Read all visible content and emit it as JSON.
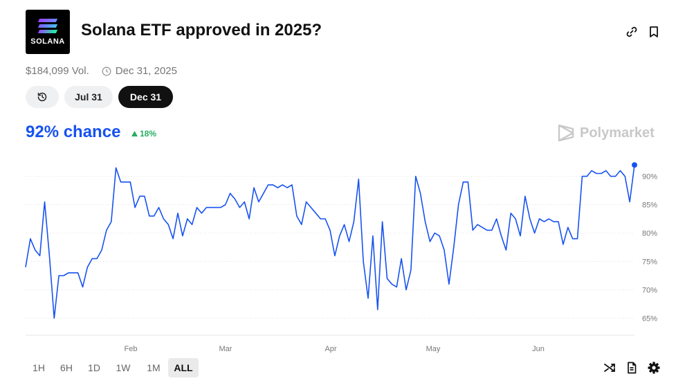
{
  "market": {
    "logo_text": "SOLANA",
    "title": "Solana ETF approved in 2025?",
    "volume": "$184,099 Vol.",
    "end_date": "Dec 31, 2025",
    "icons": [
      "link-icon",
      "bookmark-icon",
      "history-icon",
      "clock-icon"
    ]
  },
  "date_tabs": [
    "Jul 31",
    "Dec 31"
  ],
  "active_date_tab": "Dec 31",
  "summary": {
    "chance": "92% chance",
    "delta": "18%",
    "delta_direction": "up",
    "delta_color": "#27ae60",
    "accent_color": "#1652f0"
  },
  "brand": "Polymarket",
  "chart_data": {
    "type": "line",
    "x_tick_labels": [
      "Feb",
      "Mar",
      "Apr",
      "May",
      "Jun"
    ],
    "y_tick_labels": [
      "90%",
      "85%",
      "80%",
      "75%",
      "70%",
      "65%"
    ],
    "ylim": [
      62,
      93
    ],
    "series": [
      {
        "color": "#1652f0",
        "values": [
          74,
          79,
          77,
          76,
          85.5,
          76,
          65,
          72.5,
          72.5,
          73,
          73,
          73,
          70.5,
          74,
          75.5,
          75.5,
          77,
          80.5,
          82,
          91.5,
          89,
          89,
          89,
          84.5,
          86.5,
          86.5,
          83,
          83,
          84.5,
          82.5,
          81.5,
          79,
          83.5,
          79.5,
          82.5,
          81.5,
          84.5,
          83.5,
          84.5,
          84.5,
          84.5,
          84.5,
          85,
          87,
          86,
          84.5,
          85.5,
          82.5,
          88,
          85.5,
          87,
          88.5,
          88.5,
          88,
          88.5,
          88,
          88.5,
          83,
          81.5,
          85.5,
          84.5,
          83.5,
          82.5,
          82.5,
          80.5,
          76,
          79.5,
          81.5,
          78.5,
          82,
          89.5,
          75,
          68.5,
          79.5,
          66.5,
          82,
          72,
          71,
          70.5,
          75.5,
          70,
          73.5,
          90,
          87,
          82,
          78.5,
          80,
          79.5,
          77,
          71,
          77.5,
          85,
          89,
          89,
          80.5,
          81.5,
          81,
          80.5,
          80.5,
          82.5,
          79.5,
          77,
          83.5,
          82.5,
          79.5,
          86.5,
          82.5,
          80,
          82.5,
          82,
          82.5,
          82,
          82,
          78,
          81,
          79,
          79,
          90,
          90,
          91,
          90.5,
          90.5,
          91,
          90,
          90,
          91,
          90,
          85.5,
          92
        ]
      }
    ]
  },
  "time_ranges": [
    "1H",
    "6H",
    "1D",
    "1W",
    "1M",
    "ALL"
  ],
  "active_time_range": "ALL",
  "chart_tools": [
    "shuffle-icon",
    "document-icon",
    "settings-icon"
  ]
}
